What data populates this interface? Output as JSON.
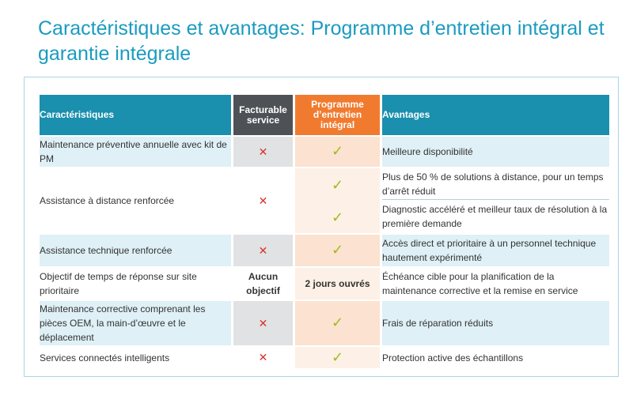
{
  "title": "Caractéristiques et avantages: Programme d’entretien intégral et garantie intégrale",
  "headers": {
    "features": "Caractéristiques",
    "billable": "Facturable service",
    "program": "Programme d’entretien intégral",
    "benefits": "Avantages"
  },
  "rows": [
    {
      "feature": "Maintenance préventive annuelle avec kit de PM",
      "billable_icon": "cross-icon",
      "program_icon": "check-icon",
      "benefit": "Meilleure disponibilité"
    },
    {
      "feature": "Assistance à distance renforcée",
      "billable_icon": "cross-icon",
      "program_icon": "check-icon",
      "benefit": "Plus de 50 % de solutions à distance, pour un temps d’arrêt réduit",
      "benefit2": "Diagnostic accéléré et meilleur taux de résolution à la première demande"
    },
    {
      "feature": "Assistance technique renforcée",
      "billable_icon": "cross-icon",
      "program_icon": "check-icon",
      "benefit": "Accès direct et prioritaire à un personnel technique hautement expérimenté"
    },
    {
      "feature": "Objectif de temps de réponse sur site prioritaire",
      "billable_text": "Aucun objectif",
      "program_text": "2 jours ouvrés",
      "benefit": "Échéance cible pour la planification de la maintenance corrective et la remise en service"
    },
    {
      "feature": "Maintenance corrective comprenant les pièces OEM, la main-d’œuvre et le déplacement",
      "billable_icon": "cross-icon",
      "program_icon": "check-icon",
      "benefit": "Frais de réparation réduits"
    },
    {
      "feature": "Services connectés intelligents",
      "billable_icon": "cross-icon",
      "program_icon": "check-icon",
      "benefit": "Protection active des échantillons"
    }
  ],
  "symbols": {
    "cross": "✕",
    "check": "✓"
  },
  "colors": {
    "accent": "#1a9bc0",
    "header_blue": "#1a8fae",
    "header_dark": "#4e5156",
    "header_orange": "#f07b2f",
    "cross": "#d9322b",
    "check": "#9cbc1e"
  }
}
